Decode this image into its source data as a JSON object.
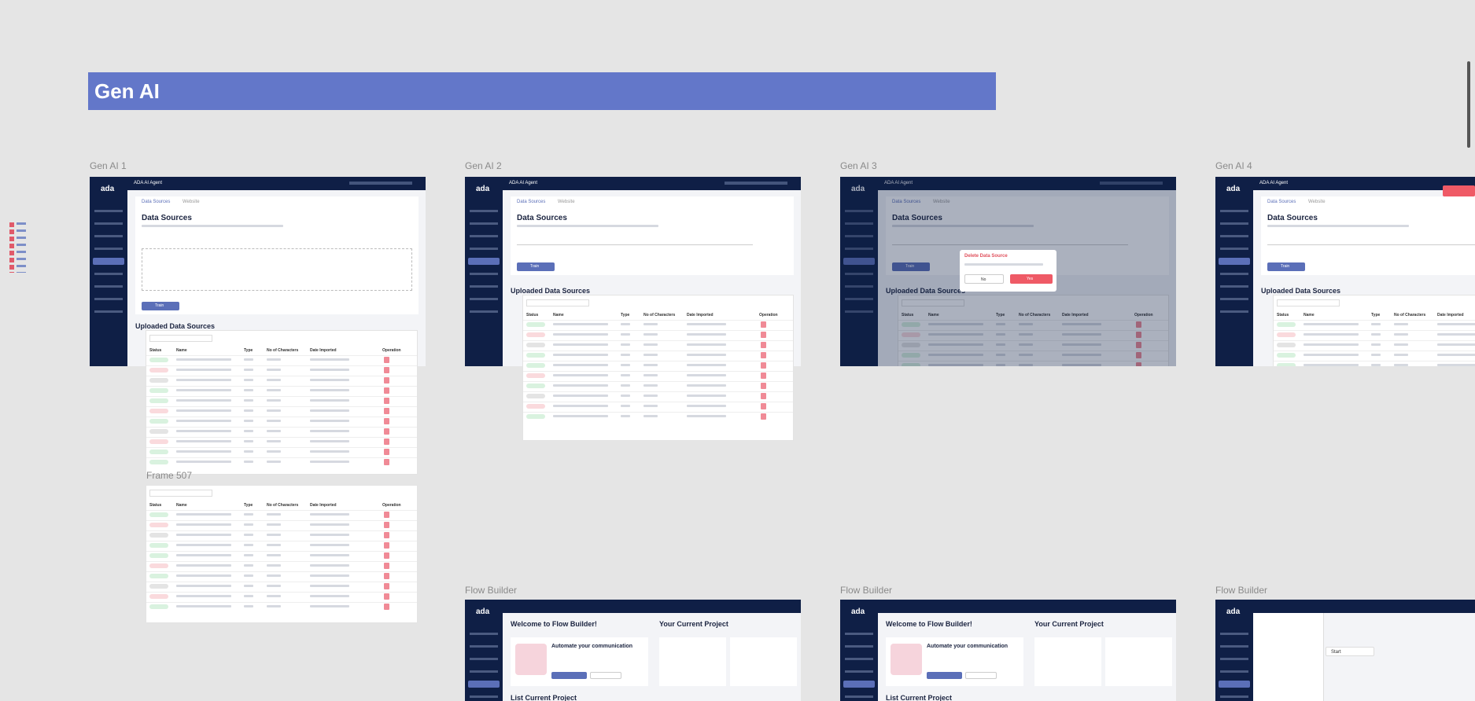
{
  "title": "Gen AI",
  "frames": [
    {
      "label": "Gen AI 1",
      "logo": "ada",
      "app_title": "ADA AI Agent",
      "tabs": [
        "Data Sources",
        "Website"
      ],
      "heading": "Data Sources",
      "button": "Train",
      "section": "Uploaded Data Sources"
    },
    {
      "label": "Gen AI 2",
      "logo": "ada",
      "app_title": "ADA AI Agent",
      "tabs": [
        "Data Sources",
        "Website"
      ],
      "heading": "Data Sources",
      "button": "Train",
      "section": "Uploaded Data Sources"
    },
    {
      "label": "Gen AI 3",
      "logo": "ada",
      "app_title": "ADA AI Agent",
      "tabs": [
        "Data Sources",
        "Website"
      ],
      "heading": "Data Sources",
      "button": "Train",
      "section": "Uploaded Data Sources"
    },
    {
      "label": "Gen AI 4",
      "logo": "ada",
      "app_title": "ADA AI Agent",
      "tabs": [
        "Data Sources",
        "Website"
      ],
      "heading": "Data Sources",
      "button": "Train",
      "section": "Uploaded Data Sources"
    }
  ],
  "columns": [
    "Status",
    "Name",
    "Type",
    "No of Characters",
    "Date Imported",
    "Operation"
  ],
  "dialog": {
    "title": "Delete Data Source",
    "no": "No",
    "yes": "Yes"
  },
  "frame_507": {
    "label": "Frame 507"
  },
  "flow_frames": [
    {
      "label": "Flow Builder",
      "logo": "ada",
      "heading": "Welcome to Flow Builder!",
      "project": "Your Current Project",
      "card": "Automate your communication",
      "list": "List Current Project"
    },
    {
      "label": "Flow Builder",
      "logo": "ada",
      "heading": "Welcome to Flow Builder!",
      "project": "Your Current Project",
      "card": "Automate your communication",
      "list": "List Current Project"
    },
    {
      "label": "Flow Builder",
      "logo": "ada",
      "node": "Start"
    }
  ]
}
